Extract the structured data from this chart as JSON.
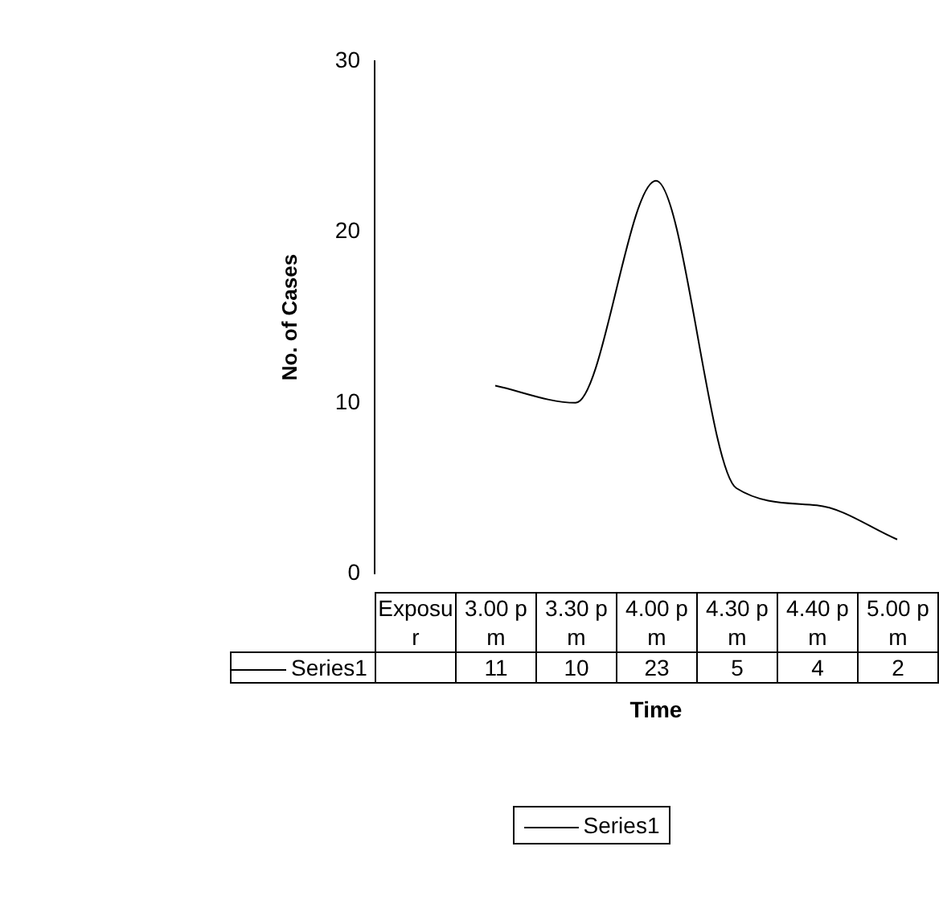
{
  "chart_data": {
    "type": "line",
    "xlabel": "Time",
    "ylabel": "No. of Cases",
    "categories": [
      "Exposur",
      "3.00 pm",
      "3.30 pm",
      "4.00 pm",
      "4.30 pm",
      "4.40 pm",
      "5.00 pm"
    ],
    "series": [
      {
        "name": "Series1",
        "color": "#000000",
        "values": [
          null,
          11,
          10,
          23,
          5,
          4,
          2
        ]
      }
    ],
    "ylim": [
      0,
      30
    ],
    "yticks": [
      0,
      10,
      20,
      30
    ],
    "grid": false,
    "legend": "bottom",
    "marker": "none",
    "line_style": "solid",
    "tick_labels": "y",
    "data_labels": true
  }
}
